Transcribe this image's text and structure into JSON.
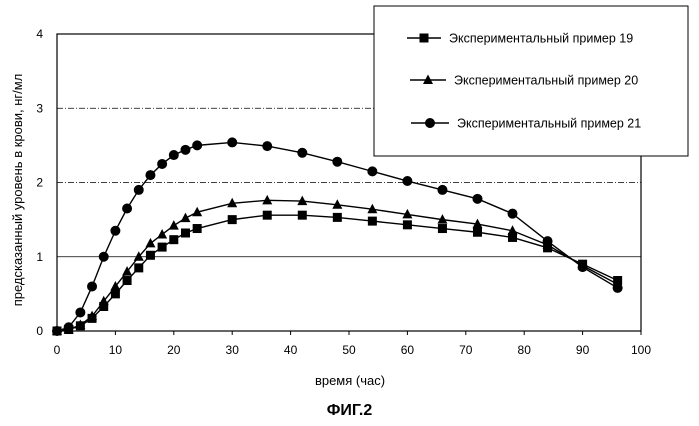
{
  "chart_data": {
    "type": "line",
    "caption": "ФИГ.2",
    "xlabel": "время (час)",
    "ylabel": "предсказанный уровень в крови, нг/мл",
    "xlim": [
      0,
      100
    ],
    "ylim": [
      0,
      4
    ],
    "xticks": [
      0,
      10,
      20,
      30,
      40,
      50,
      60,
      70,
      80,
      90,
      100
    ],
    "yticks": [
      0,
      1,
      2,
      3,
      4
    ],
    "grid": "horizontal",
    "legend_position": "top-right",
    "series": [
      {
        "name": "Экспериментальный пример 19",
        "marker": "square",
        "x": [
          0,
          2,
          4,
          6,
          8,
          10,
          12,
          14,
          16,
          18,
          20,
          22,
          24,
          30,
          36,
          42,
          48,
          54,
          60,
          66,
          72,
          78,
          84,
          90,
          96
        ],
        "y": [
          0,
          0.02,
          0.07,
          0.17,
          0.33,
          0.5,
          0.68,
          0.85,
          1.02,
          1.13,
          1.23,
          1.32,
          1.38,
          1.5,
          1.56,
          1.56,
          1.53,
          1.48,
          1.43,
          1.38,
          1.33,
          1.26,
          1.12,
          0.9,
          0.68
        ]
      },
      {
        "name": "Экспериментальный пример 20",
        "marker": "triangle",
        "x": [
          0,
          2,
          4,
          6,
          8,
          10,
          12,
          14,
          16,
          18,
          20,
          22,
          24,
          30,
          36,
          42,
          48,
          54,
          60,
          66,
          72,
          78,
          84,
          90,
          96
        ],
        "y": [
          0,
          0.02,
          0.08,
          0.2,
          0.4,
          0.6,
          0.8,
          1.0,
          1.18,
          1.3,
          1.42,
          1.52,
          1.6,
          1.72,
          1.76,
          1.75,
          1.7,
          1.64,
          1.57,
          1.5,
          1.44,
          1.35,
          1.16,
          0.88,
          0.63
        ]
      },
      {
        "name": "Экспериментальный пример 21",
        "marker": "circle",
        "x": [
          0,
          2,
          4,
          6,
          8,
          10,
          12,
          14,
          16,
          18,
          20,
          22,
          24,
          30,
          36,
          42,
          48,
          54,
          60,
          66,
          72,
          78,
          84,
          90,
          96
        ],
        "y": [
          0,
          0.05,
          0.25,
          0.6,
          1.0,
          1.35,
          1.65,
          1.9,
          2.1,
          2.25,
          2.37,
          2.44,
          2.5,
          2.54,
          2.49,
          2.4,
          2.28,
          2.15,
          2.02,
          1.9,
          1.78,
          1.58,
          1.21,
          0.86,
          0.58
        ]
      }
    ]
  }
}
